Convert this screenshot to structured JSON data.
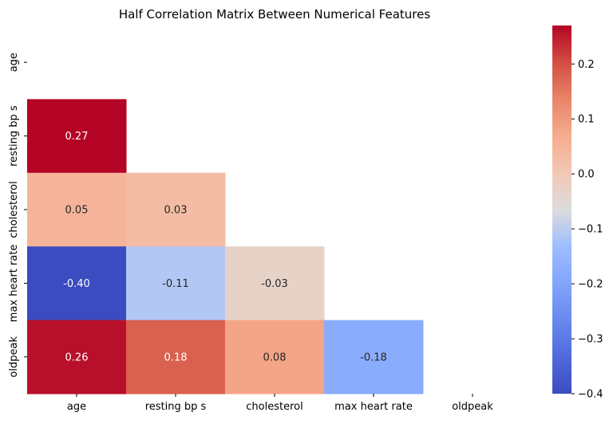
{
  "chart_data": {
    "type": "heatmap",
    "title": "Half Correlation Matrix Between Numerical Features",
    "xlabel": "",
    "ylabel": "",
    "x_labels": [
      "age",
      "resting bp s",
      "cholesterol",
      "max heart rate",
      "oldpeak"
    ],
    "y_labels": [
      "age",
      "resting bp s",
      "cholesterol",
      "max heart rate",
      "oldpeak"
    ],
    "mask": "upper triangle including diagonal",
    "cells": [
      {
        "row": "resting bp s",
        "col": "age",
        "value": 0.27,
        "label": "0.27"
      },
      {
        "row": "cholesterol",
        "col": "age",
        "value": 0.05,
        "label": "0.05"
      },
      {
        "row": "cholesterol",
        "col": "resting bp s",
        "value": 0.03,
        "label": "0.03"
      },
      {
        "row": "max heart rate",
        "col": "age",
        "value": -0.4,
        "label": "-0.40"
      },
      {
        "row": "max heart rate",
        "col": "resting bp s",
        "value": -0.11,
        "label": "-0.11"
      },
      {
        "row": "max heart rate",
        "col": "cholesterol",
        "value": -0.03,
        "label": "-0.03"
      },
      {
        "row": "oldpeak",
        "col": "age",
        "value": 0.26,
        "label": "0.26"
      },
      {
        "row": "oldpeak",
        "col": "resting bp s",
        "value": 0.18,
        "label": "0.18"
      },
      {
        "row": "oldpeak",
        "col": "cholesterol",
        "value": 0.08,
        "label": "0.08"
      },
      {
        "row": "oldpeak",
        "col": "max heart rate",
        "value": -0.18,
        "label": "-0.18"
      }
    ],
    "colorbar": {
      "colormap": "coolwarm",
      "vmin": -0.4,
      "vmax": 0.27,
      "ticks": [
        0.2,
        0.1,
        0.0,
        -0.1,
        -0.2,
        -0.3,
        -0.4
      ],
      "tick_labels": [
        "0.2",
        "0.1",
        "0.0",
        "−0.1",
        "−0.2",
        "−0.3",
        "−0.4"
      ]
    },
    "grid": false,
    "legend": "colorbar-right"
  }
}
